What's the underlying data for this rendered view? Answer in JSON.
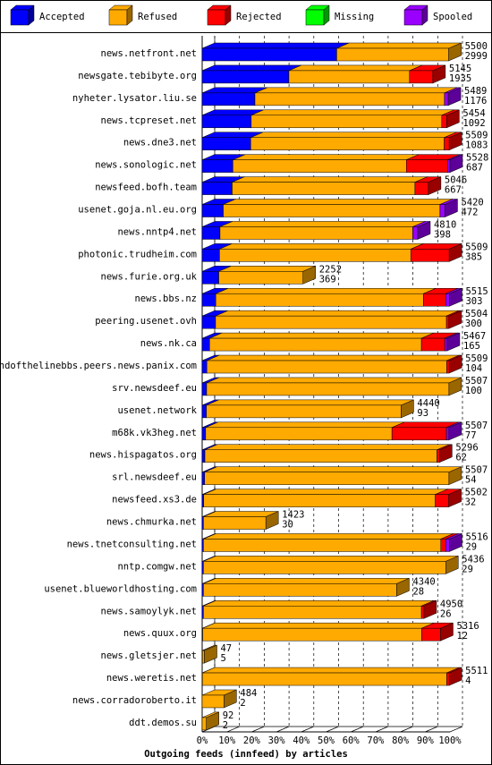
{
  "chart_data": {
    "type": "bar3d-stacked-horizontal",
    "title": "Outgoing feeds (innfeed) by articles",
    "categories": [
      "news.netfront.net",
      "newsgate.tebibyte.org",
      "nyheter.lysator.liu.se",
      "news.tcpreset.net",
      "news.dne3.net",
      "news.sonologic.net",
      "newsfeed.bofh.team",
      "usenet.goja.nl.eu.org",
      "news.nntp4.net",
      "photonic.trudheim.com",
      "news.furie.org.uk",
      "news.bbs.nz",
      "peering.usenet.ovh",
      "news.nk.ca",
      "endofthelinebbs.peers.news.panix.com",
      "srv.newsdeef.eu",
      "usenet.network",
      "m68k.vk3heg.net",
      "news.hispagatos.org",
      "srl.newsdeef.eu",
      "newsfeed.xs3.de",
      "news.chmurka.net",
      "news.tnetconsulting.net",
      "nntp.comgw.net",
      "usenet.blueworldhosting.com",
      "news.samoylyk.net",
      "news.quux.org",
      "news.gletsjer.net",
      "news.weretis.net",
      "news.corradoroberto.it",
      "ddt.demos.su"
    ],
    "offered": [
      5500,
      5145,
      5489,
      5454,
      5509,
      5528,
      5046,
      5420,
      4810,
      5509,
      2252,
      5515,
      5504,
      5467,
      5509,
      5507,
      4440,
      5507,
      5296,
      5507,
      5502,
      1423,
      5516,
      5436,
      4340,
      4950,
      5316,
      47,
      5511,
      484,
      92
    ],
    "accepted": [
      2999,
      1935,
      1176,
      1092,
      1083,
      687,
      667,
      472,
      398,
      385,
      369,
      303,
      300,
      165,
      104,
      100,
      93,
      77,
      62,
      54,
      32,
      30,
      29,
      29,
      28,
      26,
      12,
      5,
      4,
      2,
      2
    ],
    "series": [
      {
        "name": "Accepted",
        "color": "#0000ff",
        "values": [
          54.3,
          35.0,
          21.3,
          19.8,
          19.6,
          12.4,
          12.1,
          8.5,
          7.2,
          7.0,
          6.7,
          5.5,
          5.4,
          3.0,
          1.9,
          1.8,
          1.7,
          1.4,
          1.1,
          1.0,
          0.6,
          0.5,
          0.5,
          0.5,
          0.5,
          0.5,
          0.2,
          0.1,
          0.1,
          0,
          0
        ]
      },
      {
        "name": "Refused",
        "color": "#ffaa00",
        "values": [
          45.2,
          48.7,
          76.5,
          76.9,
          78.1,
          70.0,
          73.8,
          87.5,
          77.8,
          77.2,
          34.0,
          83.8,
          93.2,
          85.5,
          96.8,
          97.8,
          78.6,
          75.2,
          93.7,
          98.6,
          93.5,
          25.2,
          95.8,
          97.8,
          78.0,
          88.0,
          88.4,
          0.8,
          98.6,
          8.8,
          1.7
        ]
      },
      {
        "name": "Rejected",
        "color": "#ff0000",
        "values": [
          0,
          9.4,
          0,
          2,
          2,
          16.6,
          5.4,
          0,
          0,
          15.5,
          0,
          9,
          1,
          9.4,
          1,
          0,
          0,
          22,
          1,
          0,
          5.4,
          0,
          2,
          0,
          0,
          1,
          7.6,
          0,
          1,
          0,
          0
        ]
      },
      {
        "name": "Missing",
        "color": "#00ff00",
        "values": [
          0,
          0,
          0,
          0,
          0,
          0,
          0,
          0,
          0,
          0,
          0,
          0,
          0,
          0,
          0,
          0,
          0,
          0,
          0,
          0,
          0,
          0,
          0,
          0,
          0,
          0,
          0,
          0,
          0,
          0,
          0
        ]
      },
      {
        "name": "Spooled",
        "color": "#9900ff",
        "values": [
          0,
          0,
          1.5,
          0,
          0,
          1,
          0,
          2,
          2,
          0,
          0,
          1.5,
          0,
          1,
          0,
          0,
          0,
          1,
          0,
          0,
          0,
          0,
          1.5,
          0,
          0,
          0,
          0,
          0,
          0,
          0,
          0
        ]
      }
    ],
    "xlim": [
      0,
      100
    ],
    "xticks": [
      {
        "value": 0,
        "label": "0%"
      },
      {
        "value": 10,
        "label": "10%"
      },
      {
        "value": 20,
        "label": "20%"
      },
      {
        "value": 30,
        "label": "30%"
      },
      {
        "value": 40,
        "label": "40%"
      },
      {
        "value": 50,
        "label": "50%"
      },
      {
        "value": 60,
        "label": "60%"
      },
      {
        "value": 70,
        "label": "70%"
      },
      {
        "value": 80,
        "label": "80%"
      },
      {
        "value": 90,
        "label": "90%"
      },
      {
        "value": 100,
        "label": "100%"
      }
    ],
    "grid": true
  }
}
